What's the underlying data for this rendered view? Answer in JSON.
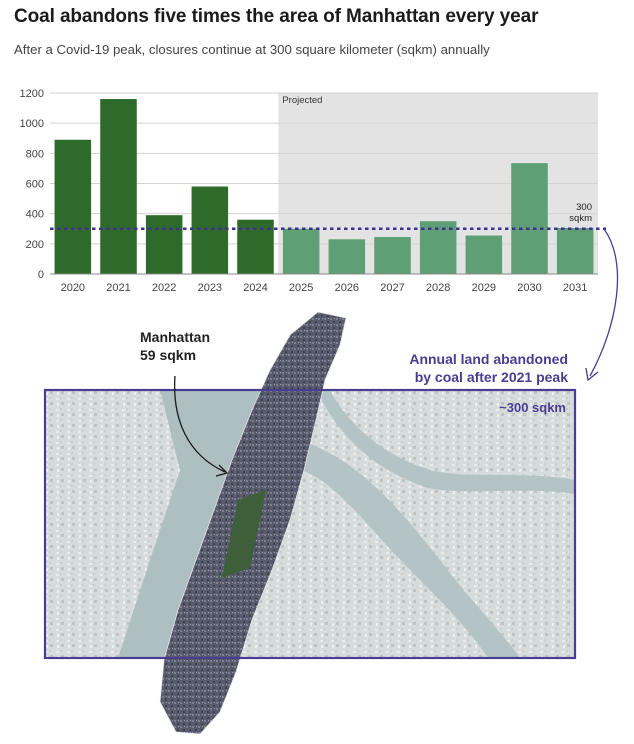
{
  "title": "Coal abandons five times the area of Manhattan every year",
  "subtitle": "After a Covid-19 peak, closures continue at 300 square kilometer (sqkm) annually",
  "chart_data": {
    "type": "bar",
    "categories": [
      "2020",
      "2021",
      "2022",
      "2023",
      "2024",
      "2025",
      "2026",
      "2027",
      "2028",
      "2029",
      "2030",
      "2031"
    ],
    "values": [
      890,
      1160,
      390,
      580,
      360,
      300,
      230,
      245,
      350,
      255,
      735,
      305
    ],
    "projected_from": "2025",
    "projected_label": "Projected",
    "y_ticks": [
      0,
      200,
      400,
      600,
      800,
      1000,
      1200
    ],
    "ylim": [
      0,
      1200
    ],
    "reference_line": {
      "value": 300,
      "label_line1": "300",
      "label_line2": "sqkm"
    },
    "xlabel": "",
    "ylabel": "",
    "grid": true,
    "colors": {
      "actual": "#2e6b2a",
      "projected": "#5e9f76",
      "projected_bg": "#e3e3e3",
      "reference": "#3e3190"
    }
  },
  "annotations": {
    "manhattan_line1": "Manhattan",
    "manhattan_line2": "59 sqkm",
    "annual_line1": "Annual land abandoned",
    "annual_line2": "by coal after 2021 peak",
    "box_label": "~300 sqkm"
  },
  "colors": {
    "accent": "#4a3c92",
    "satellite_water": "#aebfc2",
    "satellite_land": "#d8dddd",
    "manhattan_fill": "#55596a",
    "park": "#3d5f3a"
  }
}
